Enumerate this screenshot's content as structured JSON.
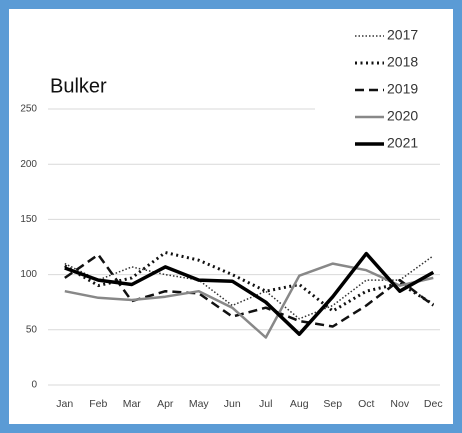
{
  "chart_data": {
    "type": "line",
    "title": "Bulker",
    "categories": [
      "Jan",
      "Feb",
      "Mar",
      "Apr",
      "May",
      "Jun",
      "Jul",
      "Aug",
      "Sep",
      "Oct",
      "Nov",
      "Dec"
    ],
    "ylim": [
      0,
      250
    ],
    "yticks": [
      0,
      50,
      100,
      150,
      200,
      250
    ],
    "grid": true,
    "legend": "top-right",
    "series": [
      {
        "name": "2017",
        "color": "#333333",
        "width": 1.5,
        "dash": "1.5 2",
        "values": [
          110,
          95,
          107,
          100,
          95,
          72,
          85,
          60,
          72,
          95,
          95,
          117
        ]
      },
      {
        "name": "2018",
        "color": "#111111",
        "width": 3,
        "dash": "2 3.5",
        "values": [
          108,
          90,
          97,
          120,
          113,
          100,
          85,
          91,
          67,
          85,
          92,
          73
        ]
      },
      {
        "name": "2019",
        "color": "#111111",
        "width": 2.5,
        "dash": "9 5",
        "values": [
          97,
          118,
          76,
          85,
          83,
          62,
          70,
          58,
          53,
          72,
          95,
          72
        ]
      },
      {
        "name": "2020",
        "color": "#888888",
        "width": 2.5,
        "dash": "none",
        "values": [
          85,
          79,
          77,
          80,
          85,
          70,
          43,
          99,
          110,
          104,
          90,
          97
        ]
      },
      {
        "name": "2021",
        "color": "#000000",
        "width": 3.5,
        "dash": "none",
        "values": [
          106,
          95,
          91,
          107,
          95,
          94,
          75,
          46,
          80,
          119,
          85,
          102
        ]
      }
    ]
  }
}
